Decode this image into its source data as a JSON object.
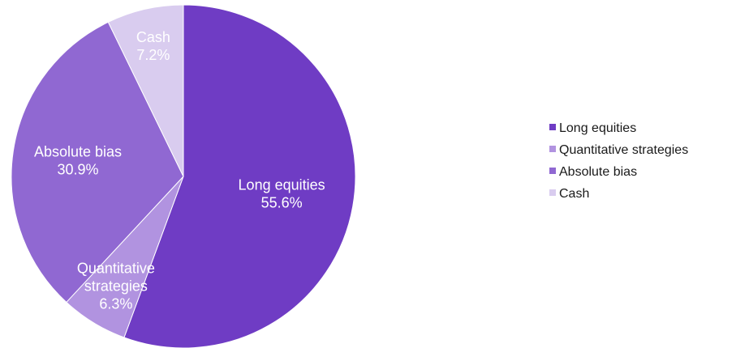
{
  "chart_data": {
    "type": "pie",
    "legend_position": "right",
    "slices": [
      {
        "name": "Long equities",
        "value": 55.6,
        "value_label": "55.6%",
        "label_lines": [
          "Long equities"
        ],
        "color": "#6f3cc4"
      },
      {
        "name": "Quantitative strategies",
        "value": 6.3,
        "value_label": "6.3%",
        "label_lines": [
          "Quantitative",
          "strategies"
        ],
        "color": "#b193e0"
      },
      {
        "name": "Absolute bias",
        "value": 30.9,
        "value_label": "30.9%",
        "label_lines": [
          "Absolute bias"
        ],
        "color": "#9068d2"
      },
      {
        "name": "Cash",
        "value": 7.2,
        "value_label": "7.2%",
        "label_lines": [
          "Cash"
        ],
        "color": "#d9ccef"
      }
    ]
  }
}
